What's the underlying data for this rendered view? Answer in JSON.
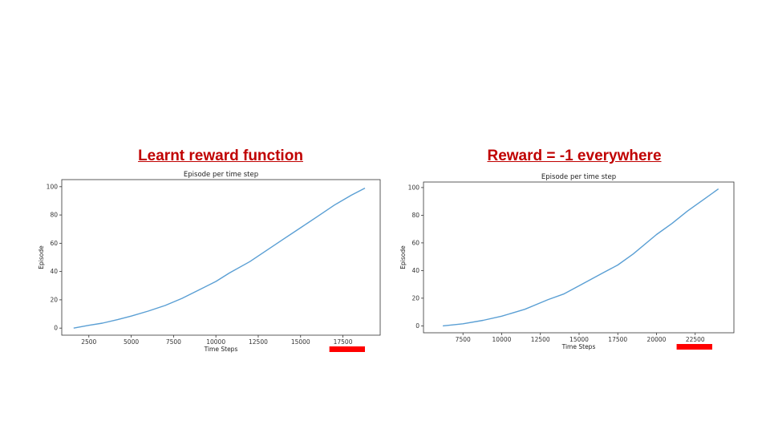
{
  "headings": {
    "left": "Learnt reward function",
    "right": "Reward = -1 everywhere"
  },
  "colors": {
    "heading": "#c00000",
    "line": "#5a9fd4",
    "marker": "#ff0000"
  },
  "chart_data": [
    {
      "type": "line",
      "title": "Episode per time step",
      "xlabel": "Time Steps",
      "ylabel": "Episode",
      "xlim": [
        900,
        19700
      ],
      "ylim": [
        -5,
        105
      ],
      "xticks": [
        2500,
        5000,
        7500,
        10000,
        12500,
        15000,
        17500
      ],
      "yticks": [
        0,
        20,
        40,
        60,
        80,
        100
      ],
      "grid": false,
      "x": [
        1600,
        2500,
        3300,
        4200,
        5000,
        6000,
        7000,
        8000,
        9000,
        10000,
        10800,
        12000,
        13000,
        14000,
        15000,
        16000,
        17000,
        18000,
        18800
      ],
      "y": [
        0,
        2,
        3.5,
        6,
        8.5,
        12,
        16,
        21,
        27,
        33,
        39,
        47,
        55,
        63,
        71,
        79,
        87,
        94,
        99
      ],
      "highlight_range": [
        16700,
        18800
      ]
    },
    {
      "type": "line",
      "title": "Episode per time step",
      "xlabel": "Time Steps",
      "ylabel": "Episode",
      "xlim": [
        4950,
        25000
      ],
      "ylim": [
        -5,
        104
      ],
      "xticks": [
        7500,
        10000,
        12500,
        15000,
        17500,
        20000,
        22500
      ],
      "yticks": [
        0,
        20,
        40,
        60,
        80,
        100
      ],
      "grid": false,
      "x": [
        6200,
        7500,
        8800,
        10000,
        11500,
        13000,
        14000,
        15000,
        16500,
        17500,
        18500,
        20000,
        21000,
        22000,
        23000,
        24000
      ],
      "y": [
        0,
        1.5,
        4,
        7,
        12,
        19,
        23,
        29,
        38,
        44,
        52,
        66,
        74,
        83,
        91,
        99
      ],
      "highlight_range": [
        21300,
        23600
      ]
    }
  ]
}
